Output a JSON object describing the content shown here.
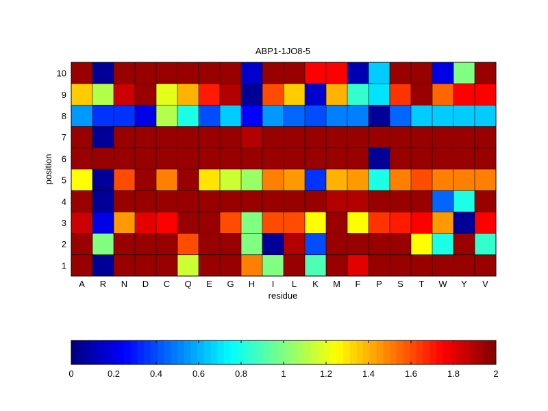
{
  "chart_data": {
    "type": "heatmap",
    "title": "ABP1-1JO8-5",
    "xlabel": "residue",
    "ylabel": "position",
    "x_categories": [
      "A",
      "R",
      "N",
      "D",
      "C",
      "Q",
      "E",
      "G",
      "H",
      "I",
      "L",
      "K",
      "M",
      "F",
      "P",
      "S",
      "T",
      "W",
      "Y",
      "V"
    ],
    "y_categories": [
      "10",
      "9",
      "8",
      "7",
      "6",
      "5",
      "4",
      "3",
      "2",
      "1"
    ],
    "values": [
      [
        1.95,
        0.05,
        1.95,
        1.95,
        1.95,
        1.95,
        1.95,
        1.95,
        0.15,
        1.95,
        1.95,
        1.75,
        1.75,
        0.1,
        0.65,
        1.95,
        1.95,
        0.2,
        1.0,
        1.95
      ],
      [
        1.35,
        1.1,
        1.85,
        1.95,
        1.2,
        1.4,
        1.7,
        1.9,
        0.05,
        1.6,
        1.35,
        0.15,
        1.4,
        0.85,
        0.7,
        1.65,
        1.95,
        1.55,
        1.75,
        1.75
      ],
      [
        0.55,
        0.35,
        0.35,
        0.2,
        1.1,
        0.8,
        0.4,
        0.65,
        0.25,
        0.55,
        0.45,
        0.4,
        0.5,
        0.5,
        0.05,
        0.45,
        0.65,
        0.65,
        0.65,
        0.65
      ],
      [
        1.95,
        0.05,
        1.95,
        1.95,
        1.95,
        1.95,
        1.95,
        1.95,
        1.9,
        1.95,
        1.95,
        1.95,
        1.95,
        1.95,
        1.95,
        1.95,
        1.95,
        1.95,
        1.95,
        1.95
      ],
      [
        1.95,
        1.95,
        1.95,
        1.95,
        1.95,
        1.95,
        1.95,
        1.95,
        1.95,
        1.95,
        1.95,
        1.95,
        1.95,
        1.95,
        0.05,
        1.95,
        1.95,
        1.95,
        1.95,
        1.95
      ],
      [
        1.25,
        0.05,
        1.6,
        1.95,
        1.5,
        1.95,
        1.3,
        1.15,
        1.05,
        1.5,
        1.45,
        0.35,
        1.4,
        1.45,
        0.8,
        1.5,
        1.6,
        1.5,
        1.5,
        1.5
      ],
      [
        1.95,
        0.05,
        1.95,
        1.95,
        1.95,
        1.95,
        1.95,
        1.95,
        1.95,
        1.95,
        1.95,
        1.95,
        1.9,
        1.9,
        1.95,
        1.95,
        1.95,
        0.45,
        0.8,
        1.95
      ],
      [
        1.85,
        0.2,
        1.45,
        1.8,
        1.75,
        1.95,
        1.95,
        1.6,
        1.0,
        1.6,
        1.6,
        1.25,
        1.95,
        1.25,
        1.65,
        1.7,
        1.75,
        1.45,
        0.05,
        1.75
      ],
      [
        1.95,
        1.0,
        1.95,
        1.95,
        1.95,
        1.6,
        1.95,
        1.95,
        1.0,
        0.05,
        1.9,
        0.4,
        1.95,
        1.95,
        1.95,
        1.95,
        1.25,
        0.8,
        1.95,
        0.85
      ],
      [
        1.95,
        0.05,
        1.95,
        1.95,
        1.95,
        1.15,
        1.95,
        1.95,
        1.5,
        1.0,
        1.95,
        0.9,
        1.95,
        1.8,
        1.95,
        1.95,
        1.95,
        1.95,
        1.95,
        1.95
      ]
    ],
    "colorbar": {
      "colormap": "jet",
      "range": [
        0,
        2
      ],
      "ticks": [
        "0",
        "0.2",
        "0.4",
        "0.6",
        "0.8",
        "1",
        "1.2",
        "1.4",
        "1.6",
        "1.8",
        "2"
      ],
      "placement": "bottom"
    },
    "grid": true
  }
}
